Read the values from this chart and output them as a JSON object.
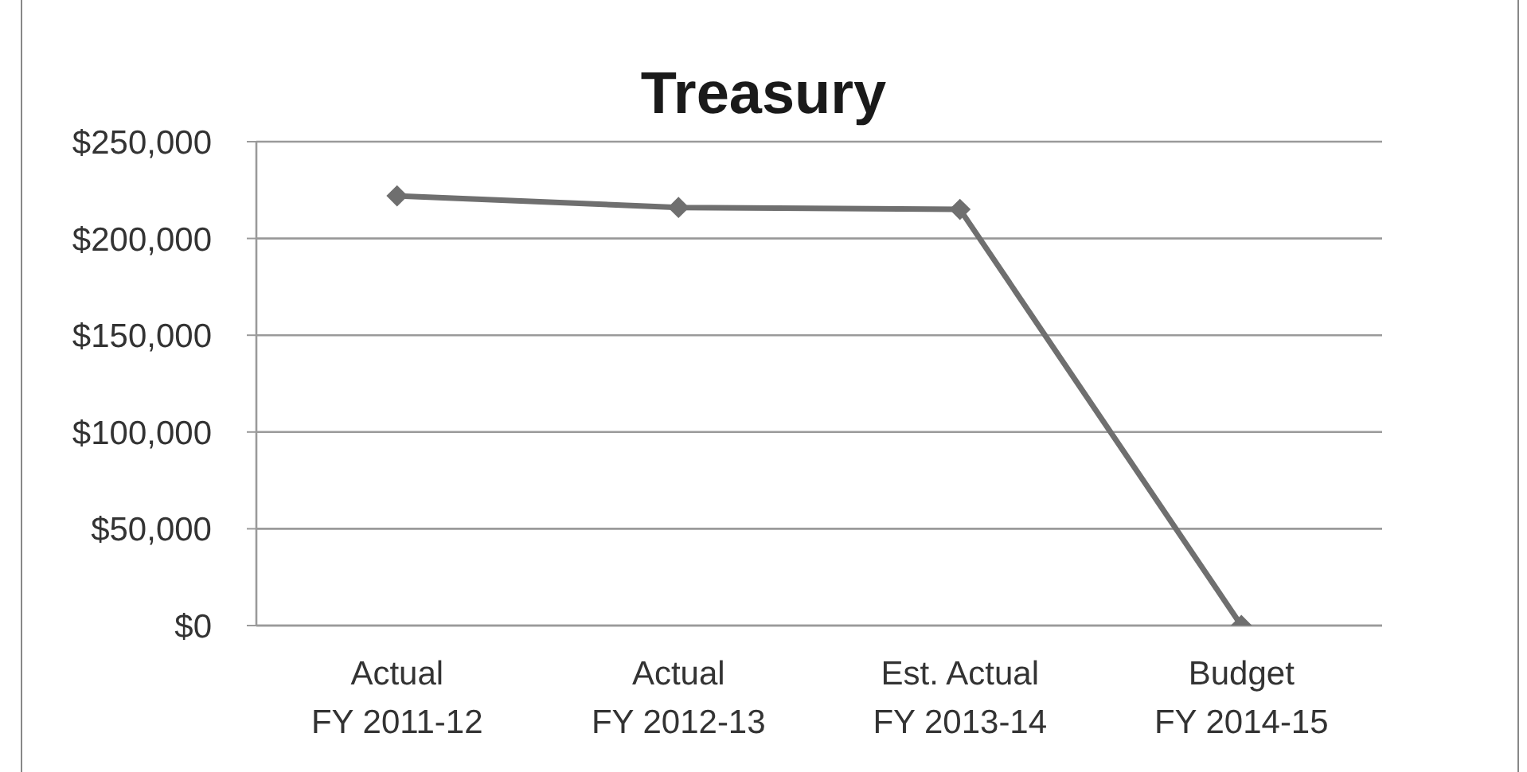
{
  "chart_data": {
    "type": "line",
    "title": "Treasury",
    "categories": [
      "Actual\nFY 2011-12",
      "Actual\nFY 2012-13",
      "Est. Actual\nFY 2013-14",
      "Budget\nFY 2014-15"
    ],
    "series": [
      {
        "color": "#6f6f6f",
        "values": [
          222000,
          216000,
          215000,
          0
        ]
      }
    ],
    "ylim": [
      0,
      250000
    ],
    "yticks": [
      {
        "value": 0,
        "label": "$0"
      },
      {
        "value": 50000,
        "label": "$50,000"
      },
      {
        "value": 100000,
        "label": "$100,000"
      },
      {
        "value": 150000,
        "label": "$150,000"
      },
      {
        "value": 200000,
        "label": "$200,000"
      },
      {
        "value": 250000,
        "label": "$250,000"
      }
    ],
    "grid": "y",
    "legend": false,
    "marker": "diamond"
  }
}
